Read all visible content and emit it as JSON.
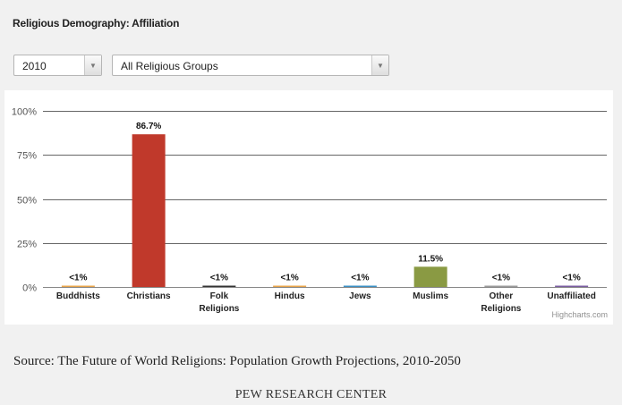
{
  "title": "Religious Demography: Affiliation",
  "filters": {
    "year": "2010",
    "group": "All Religious Groups"
  },
  "chart_data": {
    "type": "bar",
    "categories": [
      "Buddhists",
      "Christians",
      "Folk Religions",
      "Hindus",
      "Jews",
      "Muslims",
      "Other Religions",
      "Unaffiliated"
    ],
    "values": [
      0.6,
      86.7,
      0.4,
      0.5,
      0.6,
      11.5,
      0.5,
      0.5
    ],
    "data_labels": [
      "<1%",
      "86.7%",
      "<1%",
      "<1%",
      "<1%",
      "11.5%",
      "<1%",
      "<1%"
    ],
    "colors": [
      "#e8a44a",
      "#c0392b",
      "#333333",
      "#e8a44a",
      "#3a8fc4",
      "#8a9a43",
      "#999999",
      "#7a5ca0"
    ],
    "yticks": [
      "0%",
      "25%",
      "50%",
      "75%",
      "100%"
    ],
    "ylim": [
      0,
      100
    ],
    "grid": true
  },
  "credits": "Highcharts.com",
  "source": "Source: The Future of World Religions: Population Growth Projections, 2010-2050",
  "footer": "PEW RESEARCH CENTER"
}
